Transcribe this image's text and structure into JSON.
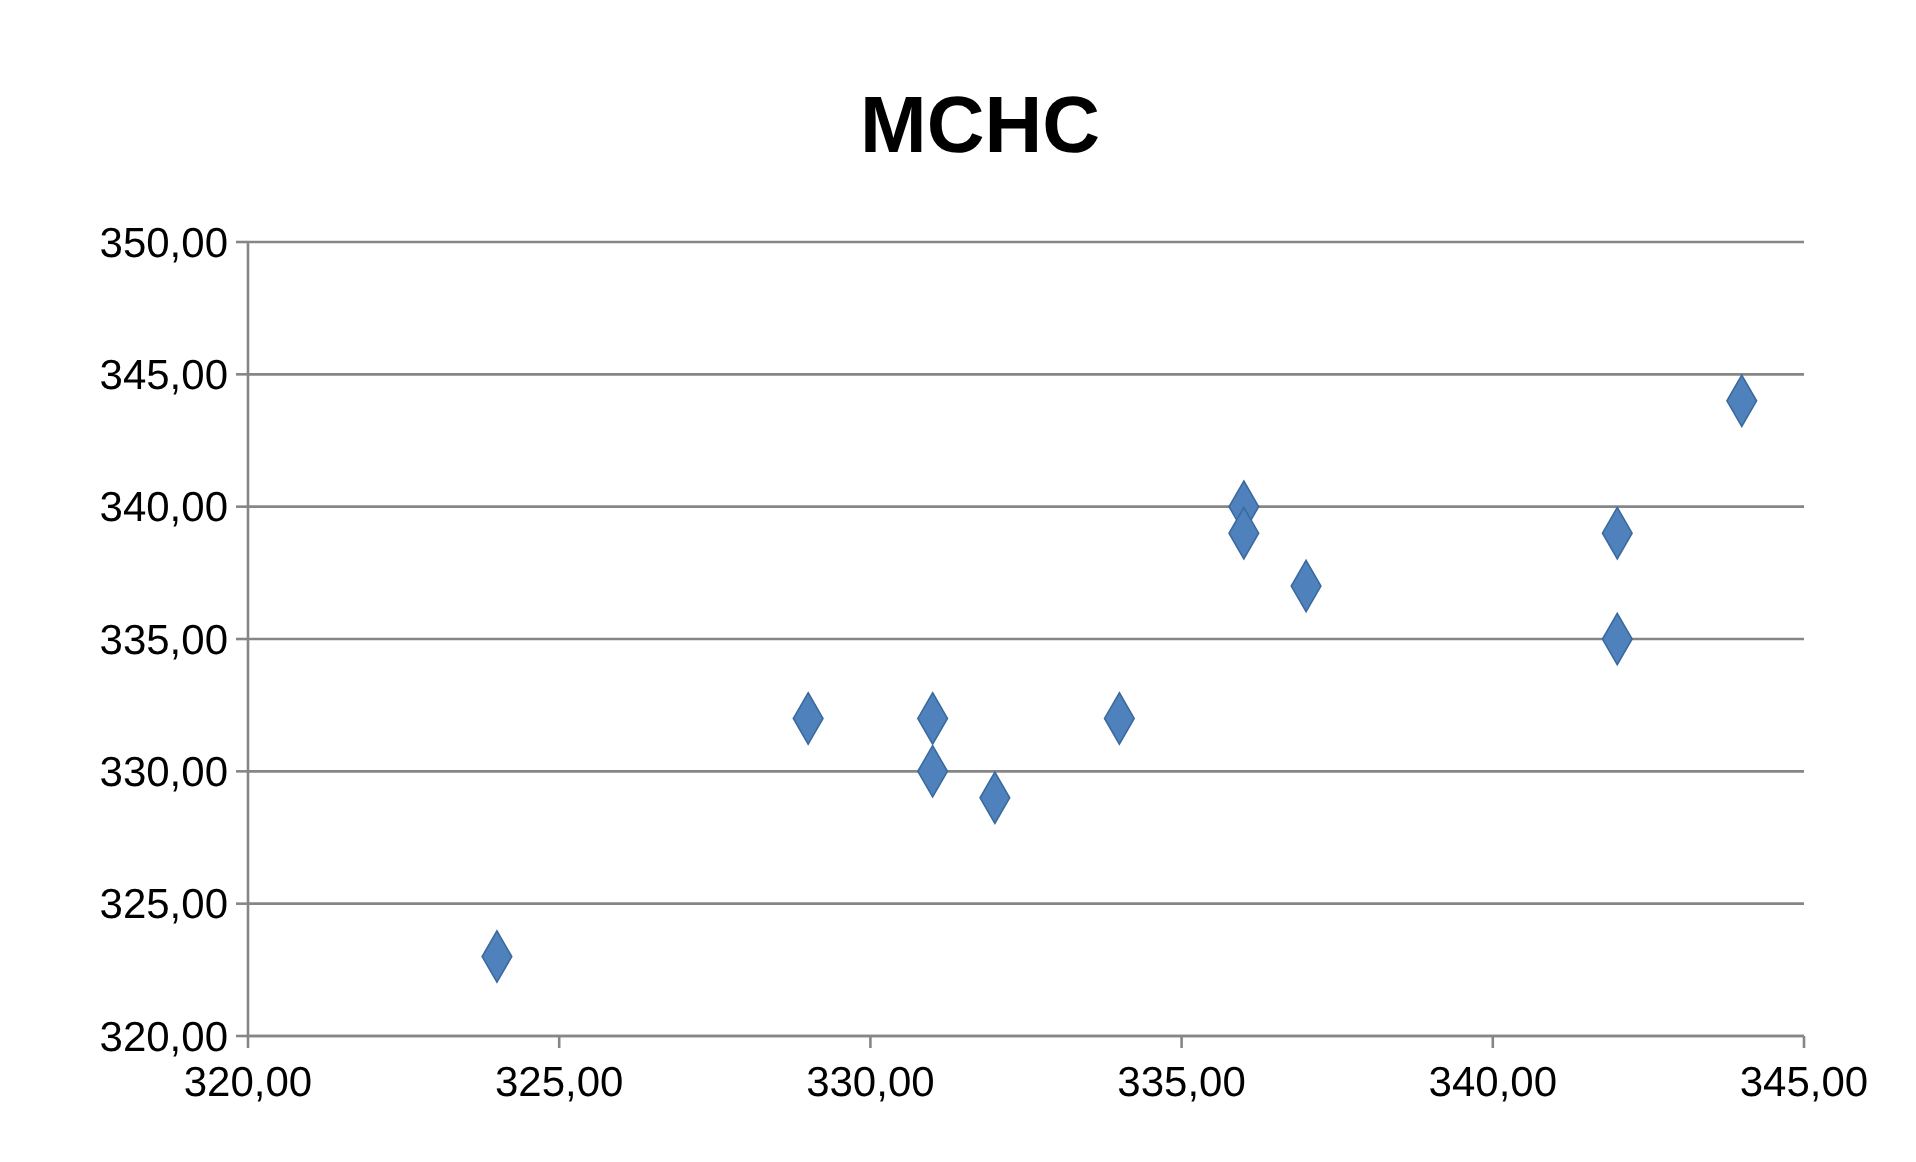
{
  "chart_data": {
    "type": "scatter",
    "title": "MCHC",
    "x": [
      324,
      329,
      331,
      331,
      332,
      334,
      336,
      336,
      337,
      342,
      342,
      344
    ],
    "values": [
      323,
      332,
      332,
      330,
      329,
      332,
      340,
      339,
      337,
      339,
      335,
      344
    ],
    "color": "#4f81bd",
    "marker": "diamond",
    "grid": "y",
    "xlim": [
      320,
      345
    ],
    "ylim": [
      320,
      350
    ],
    "xticks": [
      {
        "value": 320,
        "label": "320,00"
      },
      {
        "value": 325,
        "label": "325,00"
      },
      {
        "value": 330,
        "label": "330,00"
      },
      {
        "value": 335,
        "label": "335,00"
      },
      {
        "value": 340,
        "label": "340,00"
      },
      {
        "value": 345,
        "label": "345,00"
      }
    ],
    "yticks": [
      {
        "value": 320,
        "label": "320,00"
      },
      {
        "value": 325,
        "label": "325,00"
      },
      {
        "value": 330,
        "label": "330,00"
      },
      {
        "value": 335,
        "label": "335,00"
      },
      {
        "value": 340,
        "label": "340,00"
      },
      {
        "value": 345,
        "label": "345,00"
      },
      {
        "value": 350,
        "label": "350,00"
      }
    ]
  }
}
